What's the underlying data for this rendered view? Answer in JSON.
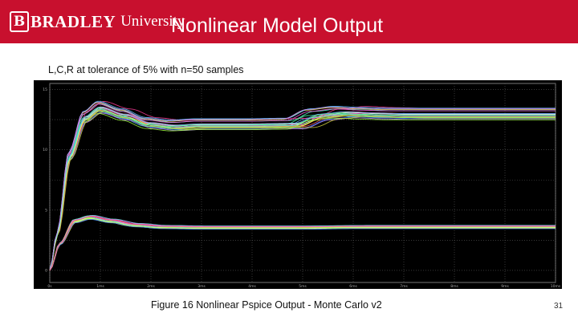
{
  "header": {
    "logo_brand": "BRADLEY",
    "logo_word": "University",
    "title": "Nonlinear Model Output",
    "accent_color": "#c8102e"
  },
  "subtitle": "L,C,R at tolerance of 5% with n=50 samples",
  "caption": "Figure 16 Nonlinear Pspice Output - Monte Carlo v2",
  "page_number": "31",
  "chart_data": {
    "type": "line",
    "title": "",
    "xlabel": "",
    "ylabel": "",
    "x_ticks": [
      "0s",
      "1ms",
      "2ms",
      "3ms",
      "4ms",
      "5ms",
      "6ms",
      "7ms",
      "8ms",
      "9ms",
      "10ms"
    ],
    "y_ticks": [
      "0",
      "5",
      "10",
      "15"
    ],
    "xlim": [
      0,
      10
    ],
    "ylim": [
      -1,
      15.5
    ],
    "grid": true,
    "background": "#000000",
    "series": [
      {
        "group": "upper",
        "x": [
          0,
          0.15,
          0.4,
          0.7,
          1.0,
          1.5,
          2.0,
          2.5,
          3.0,
          4.0,
          4.9,
          5.4,
          5.9,
          6.5,
          7.0,
          8.0,
          9.0,
          10.0
        ],
        "y": [
          0,
          3.0,
          9.5,
          12.7,
          13.5,
          12.9,
          12.2,
          12.0,
          12.1,
          12.1,
          12.15,
          12.9,
          13.1,
          13.0,
          12.95,
          12.95,
          12.95,
          12.95
        ]
      },
      {
        "group": "lower",
        "x": [
          0,
          0.2,
          0.5,
          0.8,
          1.2,
          1.7,
          2.2,
          3.0,
          4.0,
          5.0,
          6.0,
          8.0,
          10.0
        ],
        "y": [
          0,
          2.2,
          4.1,
          4.4,
          4.1,
          3.75,
          3.6,
          3.55,
          3.55,
          3.55,
          3.6,
          3.6,
          3.6
        ]
      }
    ]
  }
}
